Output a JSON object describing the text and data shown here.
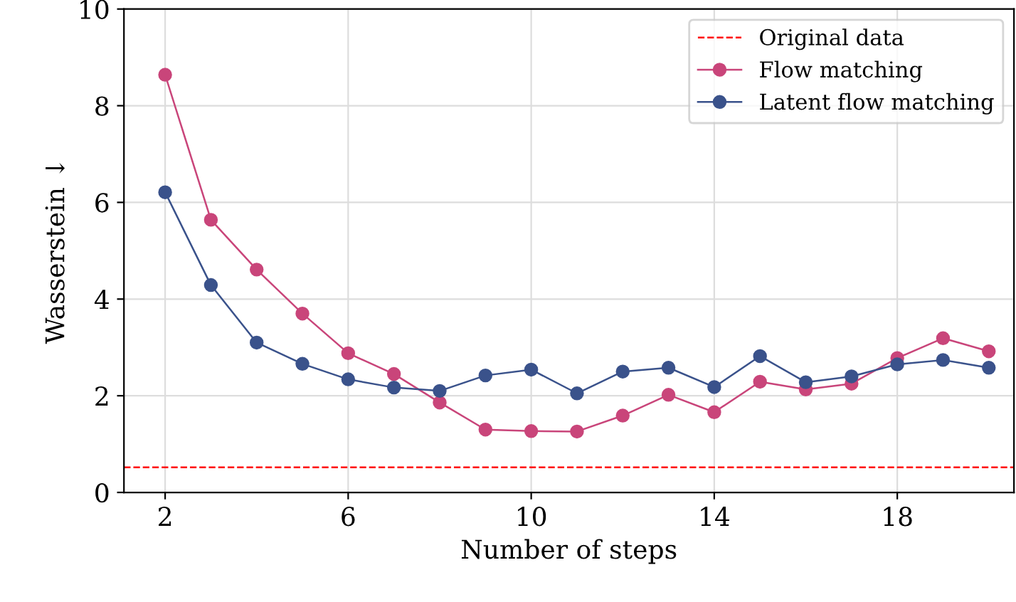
{
  "chart_data": {
    "type": "line",
    "xlabel": "Number of steps",
    "ylabel": "Wasserstein ↓",
    "x": [
      2,
      3,
      4,
      5,
      6,
      7,
      8,
      9,
      10,
      11,
      12,
      13,
      14,
      15,
      16,
      17,
      18,
      19,
      20
    ],
    "series": [
      {
        "name": "Flow matching",
        "color": "#c9457a",
        "values": [
          8.64,
          5.64,
          4.61,
          3.7,
          2.88,
          2.45,
          1.86,
          1.3,
          1.27,
          1.26,
          1.59,
          2.02,
          1.66,
          2.29,
          2.13,
          2.25,
          2.78,
          3.19,
          2.92
        ]
      },
      {
        "name": "Latent flow matching",
        "color": "#3a528b",
        "values": [
          6.21,
          4.29,
          3.1,
          2.66,
          2.34,
          2.17,
          2.1,
          2.42,
          2.54,
          2.05,
          2.5,
          2.58,
          2.18,
          2.82,
          2.28,
          2.4,
          2.65,
          2.74,
          2.58
        ]
      }
    ],
    "ref_lines": [
      {
        "axis": "y",
        "value": 0.52,
        "label": "Original data",
        "color": "#ff0000",
        "line_style": "dashed"
      }
    ],
    "xlim": [
      1.1,
      20.55
    ],
    "ylim": [
      0,
      10
    ],
    "xticks": [
      2,
      6,
      10,
      14,
      18
    ],
    "yticks": [
      0,
      2,
      4,
      6,
      8,
      10
    ],
    "grid": true,
    "legend": "top right",
    "marker": "circle",
    "line_style": "solid"
  }
}
